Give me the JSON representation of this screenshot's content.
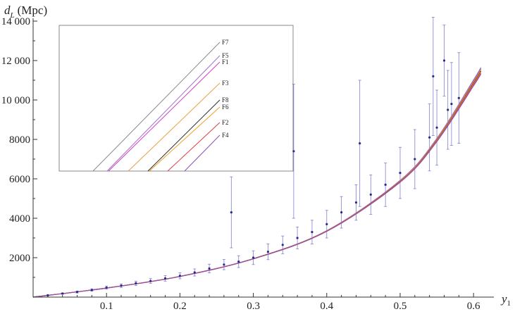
{
  "chart_data": {
    "type": "scatter",
    "title": "",
    "xlabel": "y",
    "xlabel_sub": "1",
    "ylabel": "d",
    "ylabel_sub": "L",
    "ylabel_unit": "(Mpc)",
    "xlim": [
      0,
      0.62
    ],
    "ylim": [
      0,
      14000
    ],
    "x_ticks": [
      0.1,
      0.2,
      0.3,
      0.4,
      0.5,
      0.6
    ],
    "x_tick_labels": [
      "0.1",
      "0.2",
      "0.3",
      "0.4",
      "0.5",
      "0.6"
    ],
    "y_ticks": [
      2000,
      4000,
      6000,
      8000,
      10000,
      12000,
      14000
    ],
    "y_tick_labels": [
      "2000",
      "4000",
      "6000",
      "8000",
      "10 000",
      "12 000",
      "14 000"
    ],
    "grid": false,
    "legend": "top-left inset",
    "model_series": [
      {
        "name": "F7",
        "color": "#8a8a8a",
        "x": [
          0,
          0.1,
          0.2,
          0.3,
          0.4,
          0.5,
          0.55,
          0.6,
          0.61
        ],
        "y": [
          0,
          460,
          1050,
          1950,
          3370,
          5920,
          8050,
          11020,
          11650
        ]
      },
      {
        "name": "F5",
        "color": "#a070d0",
        "x": [
          0,
          0.1,
          0.2,
          0.3,
          0.4,
          0.5,
          0.55,
          0.6,
          0.61
        ],
        "y": [
          0,
          460,
          1050,
          1950,
          3365,
          5910,
          8030,
          10980,
          11600
        ]
      },
      {
        "name": "F1",
        "color": "#d040c0",
        "x": [
          0,
          0.1,
          0.2,
          0.3,
          0.4,
          0.5,
          0.55,
          0.6,
          0.61
        ],
        "y": [
          0,
          460,
          1050,
          1950,
          3360,
          5900,
          8010,
          10940,
          11560
        ]
      },
      {
        "name": "F3",
        "color": "#e8a040",
        "x": [
          0,
          0.1,
          0.2,
          0.3,
          0.4,
          0.5,
          0.55,
          0.6,
          0.61
        ],
        "y": [
          0,
          460,
          1050,
          1945,
          3355,
          5885,
          7990,
          10900,
          11520
        ]
      },
      {
        "name": "F8",
        "color": "#303030",
        "x": [
          0,
          0.1,
          0.2,
          0.3,
          0.4,
          0.5,
          0.55,
          0.6,
          0.61
        ],
        "y": [
          0,
          460,
          1050,
          1945,
          3350,
          5870,
          7960,
          10850,
          11460
        ]
      },
      {
        "name": "F6",
        "color": "#f0a020",
        "x": [
          0,
          0.1,
          0.2,
          0.3,
          0.4,
          0.5,
          0.55,
          0.6,
          0.61
        ],
        "y": [
          0,
          460,
          1048,
          1942,
          3345,
          5860,
          7940,
          10810,
          11420
        ]
      },
      {
        "name": "F2",
        "color": "#e04040",
        "x": [
          0,
          0.1,
          0.2,
          0.3,
          0.4,
          0.5,
          0.55,
          0.6,
          0.61
        ],
        "y": [
          0,
          460,
          1047,
          1940,
          3340,
          5845,
          7915,
          10770,
          11370
        ]
      },
      {
        "name": "F4",
        "color": "#9050b0",
        "x": [
          0,
          0.1,
          0.2,
          0.3,
          0.4,
          0.5,
          0.55,
          0.6,
          0.61
        ],
        "y": [
          0,
          460,
          1046,
          1938,
          3335,
          5830,
          7890,
          10720,
          11320
        ]
      }
    ],
    "data_points": {
      "x": [
        0.02,
        0.04,
        0.06,
        0.08,
        0.1,
        0.12,
        0.14,
        0.16,
        0.18,
        0.2,
        0.22,
        0.24,
        0.26,
        0.27,
        0.28,
        0.3,
        0.32,
        0.34,
        0.355,
        0.36,
        0.38,
        0.4,
        0.42,
        0.44,
        0.445,
        0.46,
        0.48,
        0.5,
        0.52,
        0.54,
        0.545,
        0.55,
        0.56,
        0.565,
        0.57,
        0.58
      ],
      "y": [
        90,
        180,
        260,
        360,
        480,
        580,
        700,
        820,
        950,
        1080,
        1250,
        1450,
        1650,
        4300,
        1800,
        2000,
        2300,
        2650,
        7400,
        3000,
        3300,
        3700,
        4300,
        4800,
        7800,
        5200,
        5700,
        6300,
        7000,
        8100,
        11200,
        8600,
        12000,
        9500,
        9800,
        10100
      ],
      "err": [
        25,
        35,
        50,
        60,
        80,
        90,
        110,
        120,
        140,
        150,
        180,
        220,
        260,
        1800,
        300,
        350,
        400,
        450,
        3400,
        550,
        600,
        700,
        800,
        900,
        3200,
        1000,
        1100,
        1300,
        1500,
        1700,
        3000,
        1900,
        1800,
        2000,
        2100,
        2300
      ]
    }
  }
}
